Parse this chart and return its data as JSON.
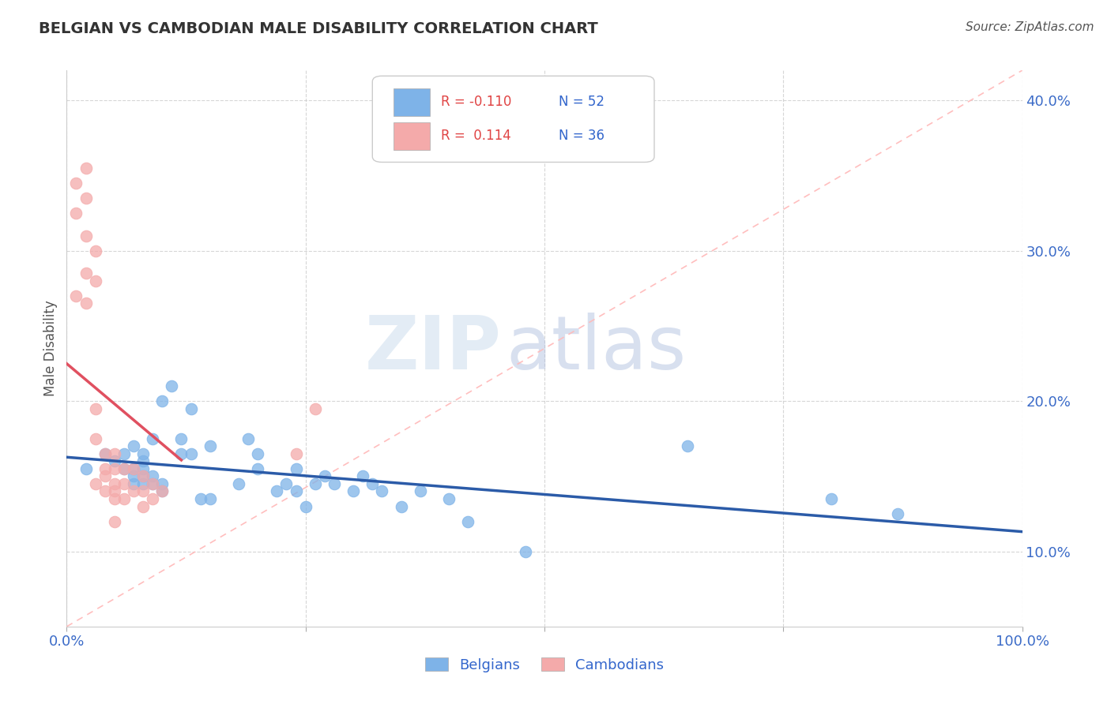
{
  "title": "BELGIAN VS CAMBODIAN MALE DISABILITY CORRELATION CHART",
  "source": "Source: ZipAtlas.com",
  "ylabel": "Male Disability",
  "xlim": [
    0.0,
    1.0
  ],
  "ylim": [
    0.05,
    0.42
  ],
  "yticks": [
    0.1,
    0.2,
    0.3,
    0.4
  ],
  "yticklabels": [
    "10.0%",
    "20.0%",
    "30.0%",
    "40.0%"
  ],
  "xtick_positions": [
    0.0,
    0.25,
    0.5,
    0.75,
    1.0
  ],
  "xticklabels": [
    "0.0%",
    "",
    "",
    "",
    "100.0%"
  ],
  "belgian_color": "#7EB3E8",
  "cambodian_color": "#F4AAAA",
  "belgian_line_color": "#2B5BA8",
  "cambodian_line_color": "#E05060",
  "diagonal_color": "#FFBBBB",
  "legend_r_belgian": "R = -0.110",
  "legend_n_belgian": "N = 52",
  "legend_r_cambodian": "R =  0.114",
  "legend_n_cambodian": "N = 36",
  "watermark_zip": "ZIP",
  "watermark_atlas": "atlas",
  "belgians_label": "Belgians",
  "cambodians_label": "Cambodians",
  "belgian_x": [
    0.02,
    0.04,
    0.05,
    0.06,
    0.06,
    0.07,
    0.07,
    0.07,
    0.07,
    0.08,
    0.08,
    0.08,
    0.08,
    0.08,
    0.09,
    0.09,
    0.09,
    0.1,
    0.1,
    0.1,
    0.11,
    0.12,
    0.12,
    0.13,
    0.13,
    0.14,
    0.15,
    0.15,
    0.18,
    0.19,
    0.2,
    0.2,
    0.22,
    0.23,
    0.24,
    0.24,
    0.25,
    0.26,
    0.27,
    0.28,
    0.3,
    0.31,
    0.32,
    0.33,
    0.35,
    0.37,
    0.4,
    0.42,
    0.48,
    0.65,
    0.8,
    0.87
  ],
  "belgian_y": [
    0.155,
    0.165,
    0.16,
    0.155,
    0.165,
    0.145,
    0.15,
    0.155,
    0.17,
    0.145,
    0.15,
    0.155,
    0.16,
    0.165,
    0.145,
    0.15,
    0.175,
    0.14,
    0.145,
    0.2,
    0.21,
    0.165,
    0.175,
    0.165,
    0.195,
    0.135,
    0.135,
    0.17,
    0.145,
    0.175,
    0.155,
    0.165,
    0.14,
    0.145,
    0.14,
    0.155,
    0.13,
    0.145,
    0.15,
    0.145,
    0.14,
    0.15,
    0.145,
    0.14,
    0.13,
    0.14,
    0.135,
    0.12,
    0.1,
    0.17,
    0.135,
    0.125
  ],
  "cambodian_x": [
    0.01,
    0.01,
    0.01,
    0.02,
    0.02,
    0.02,
    0.02,
    0.02,
    0.03,
    0.03,
    0.03,
    0.03,
    0.03,
    0.04,
    0.04,
    0.04,
    0.04,
    0.05,
    0.05,
    0.05,
    0.05,
    0.05,
    0.05,
    0.06,
    0.06,
    0.06,
    0.07,
    0.07,
    0.08,
    0.08,
    0.08,
    0.09,
    0.09,
    0.1,
    0.24,
    0.26
  ],
  "cambodian_y": [
    0.345,
    0.325,
    0.27,
    0.355,
    0.335,
    0.31,
    0.285,
    0.265,
    0.3,
    0.28,
    0.195,
    0.175,
    0.145,
    0.165,
    0.155,
    0.15,
    0.14,
    0.165,
    0.155,
    0.145,
    0.14,
    0.135,
    0.12,
    0.155,
    0.145,
    0.135,
    0.155,
    0.14,
    0.15,
    0.14,
    0.13,
    0.145,
    0.135,
    0.14,
    0.165,
    0.195
  ]
}
